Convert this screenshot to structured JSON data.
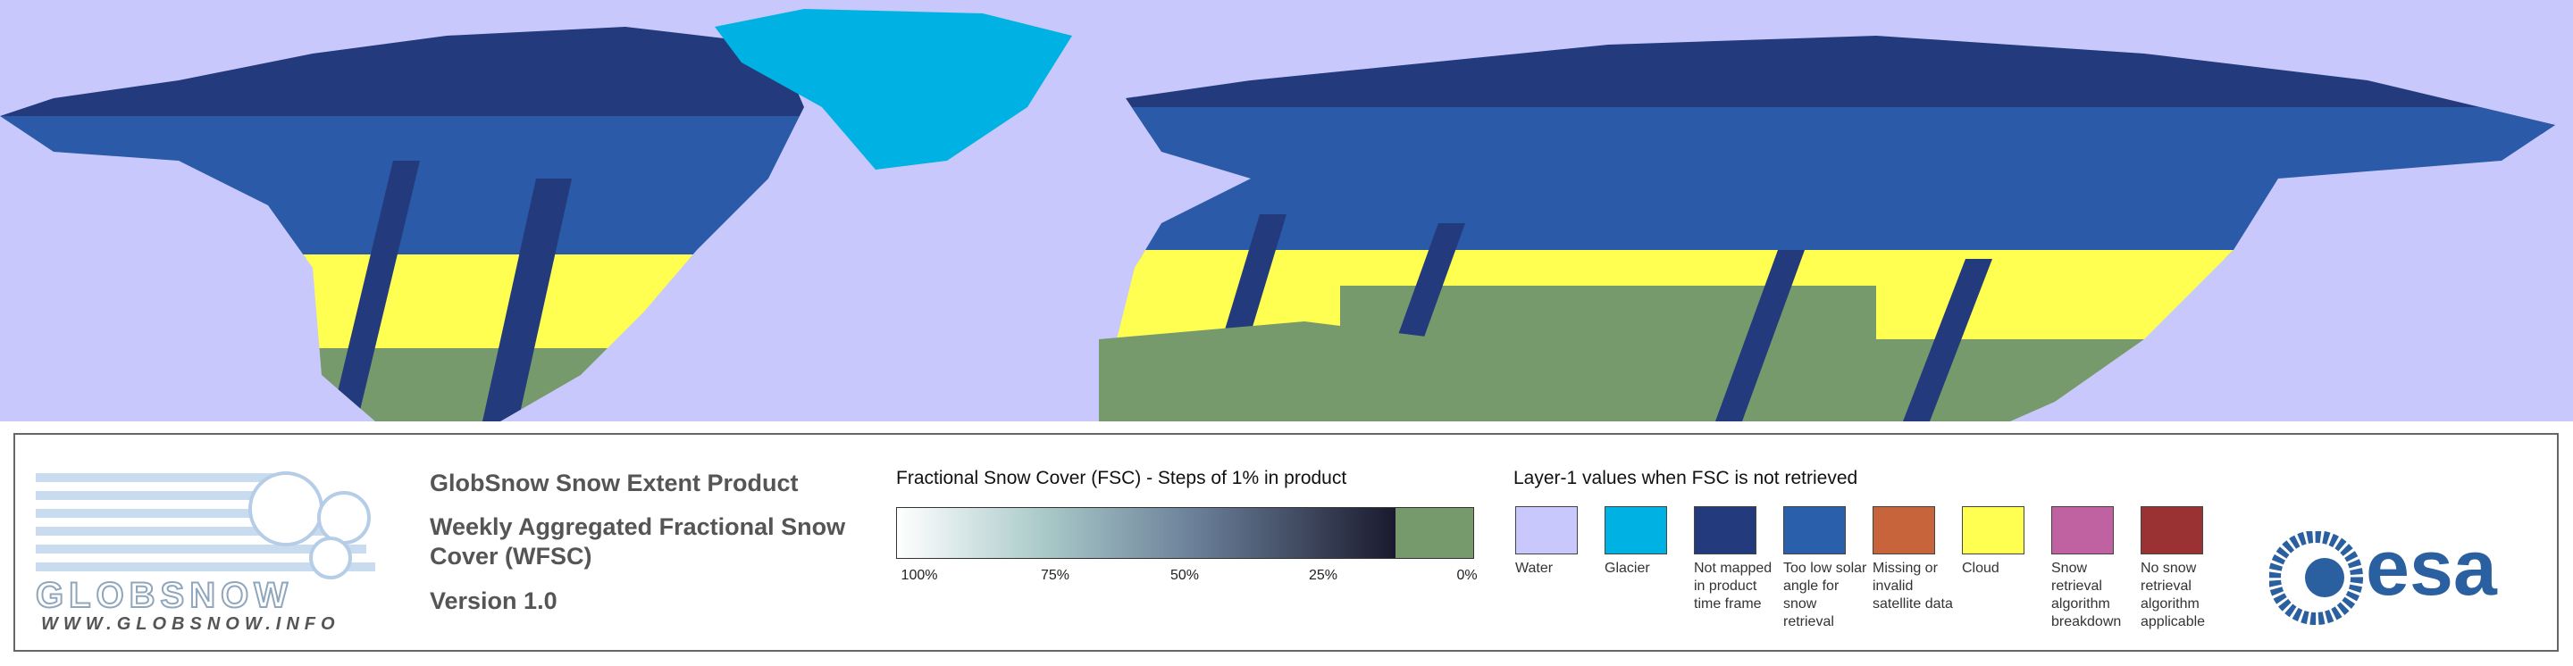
{
  "logo": {
    "name": "GLOBSNOW",
    "url": "WWW.GLOBSNOW.INFO"
  },
  "product": {
    "title": "GlobSnow Snow Extent Product",
    "subtitle": "Weekly Aggregated Fractional Snow Cover (WFSC)",
    "version": "Version 1.0"
  },
  "fsc_legend": {
    "title": "Fractional Snow Cover (FSC) - Steps of 1% in product",
    "ticks": [
      "100%",
      "75%",
      "50%",
      "25%",
      "0%"
    ],
    "no_snow_color": "#779a6c"
  },
  "layer1_legend": {
    "title": "Layer-1 values when FSC is not retrieved",
    "items": [
      {
        "label": "Water",
        "color": "#c8c8fc"
      },
      {
        "label": "Glacier",
        "color": "#00b2e4"
      },
      {
        "label": "Not mapped in product time frame",
        "color": "#233a7c"
      },
      {
        "label": "Too low solar angle for snow retrieval",
        "color": "#2a5fac"
      },
      {
        "label": "Missing or invalid satellite data",
        "color": "#c8643c"
      },
      {
        "label": "Cloud",
        "color": "#ffff52"
      },
      {
        "label": "Snow retrieval algorithm breakdown",
        "color": "#c062a2"
      },
      {
        "label": "No snow retrieval algorithm applicable",
        "color": "#9a3234"
      }
    ]
  },
  "agency_logo": "esa"
}
